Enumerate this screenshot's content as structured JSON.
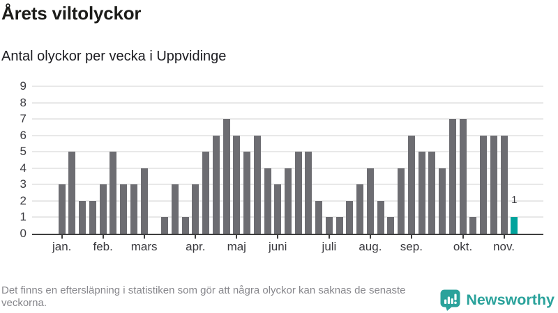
{
  "header": {
    "title": "Årets viltolyckor",
    "subtitle": "Antal olyckor per vecka i Uppvidinge"
  },
  "chart_data": {
    "type": "bar",
    "title": "Årets viltolyckor",
    "subtitle": "Antal olyckor per vecka i Uppvidinge",
    "x_unit": "vecka",
    "values": [
      3,
      5,
      2,
      2,
      3,
      5,
      3,
      3,
      4,
      0,
      1,
      3,
      1,
      3,
      5,
      6,
      7,
      6,
      5,
      6,
      4,
      3,
      4,
      5,
      5,
      2,
      1,
      1,
      2,
      3,
      4,
      2,
      1,
      4,
      6,
      5,
      5,
      4,
      7,
      7,
      1,
      6,
      6,
      6,
      1
    ],
    "weeks": [
      1,
      2,
      3,
      4,
      5,
      6,
      7,
      8,
      9,
      10,
      11,
      12,
      13,
      14,
      15,
      16,
      17,
      18,
      19,
      20,
      21,
      22,
      23,
      24,
      25,
      26,
      27,
      28,
      29,
      30,
      31,
      32,
      33,
      34,
      35,
      36,
      37,
      38,
      39,
      40,
      41,
      42,
      43,
      44,
      45
    ],
    "highlight_last_index": 44,
    "last_bar_label": "1",
    "y_ticks": [
      0,
      1,
      2,
      3,
      4,
      5,
      6,
      7,
      8,
      9
    ],
    "ylim": [
      0,
      9
    ],
    "grid": true,
    "legend": "none",
    "month_tick_labels": [
      {
        "week": 1,
        "label": "jan."
      },
      {
        "week": 5,
        "label": "feb."
      },
      {
        "week": 9,
        "label": "mars"
      },
      {
        "week": 14,
        "label": "apr."
      },
      {
        "week": 18,
        "label": "maj"
      },
      {
        "week": 22,
        "label": "juni"
      },
      {
        "week": 27,
        "label": "juli"
      },
      {
        "week": 31,
        "label": "aug."
      },
      {
        "week": 35,
        "label": "sep."
      },
      {
        "week": 40,
        "label": "okt."
      },
      {
        "week": 44,
        "label": "nov."
      }
    ],
    "bar_color": "#6d6d72",
    "highlight_color": "#00a39c"
  },
  "footer": {
    "disclaimer": "Det finns en eftersläpning i statistiken som gör att några olyckor kan saknas de senaste veckorna.",
    "brand": "Newsworthy"
  },
  "colors": {
    "accent_teal": "#00a39c",
    "bar_gray": "#6d6d72",
    "logo_teal": "#2aa29b",
    "axis_dark": "#3e3e3e",
    "grid_gray": "#e8e8e8",
    "footer_gray": "#87878c"
  }
}
